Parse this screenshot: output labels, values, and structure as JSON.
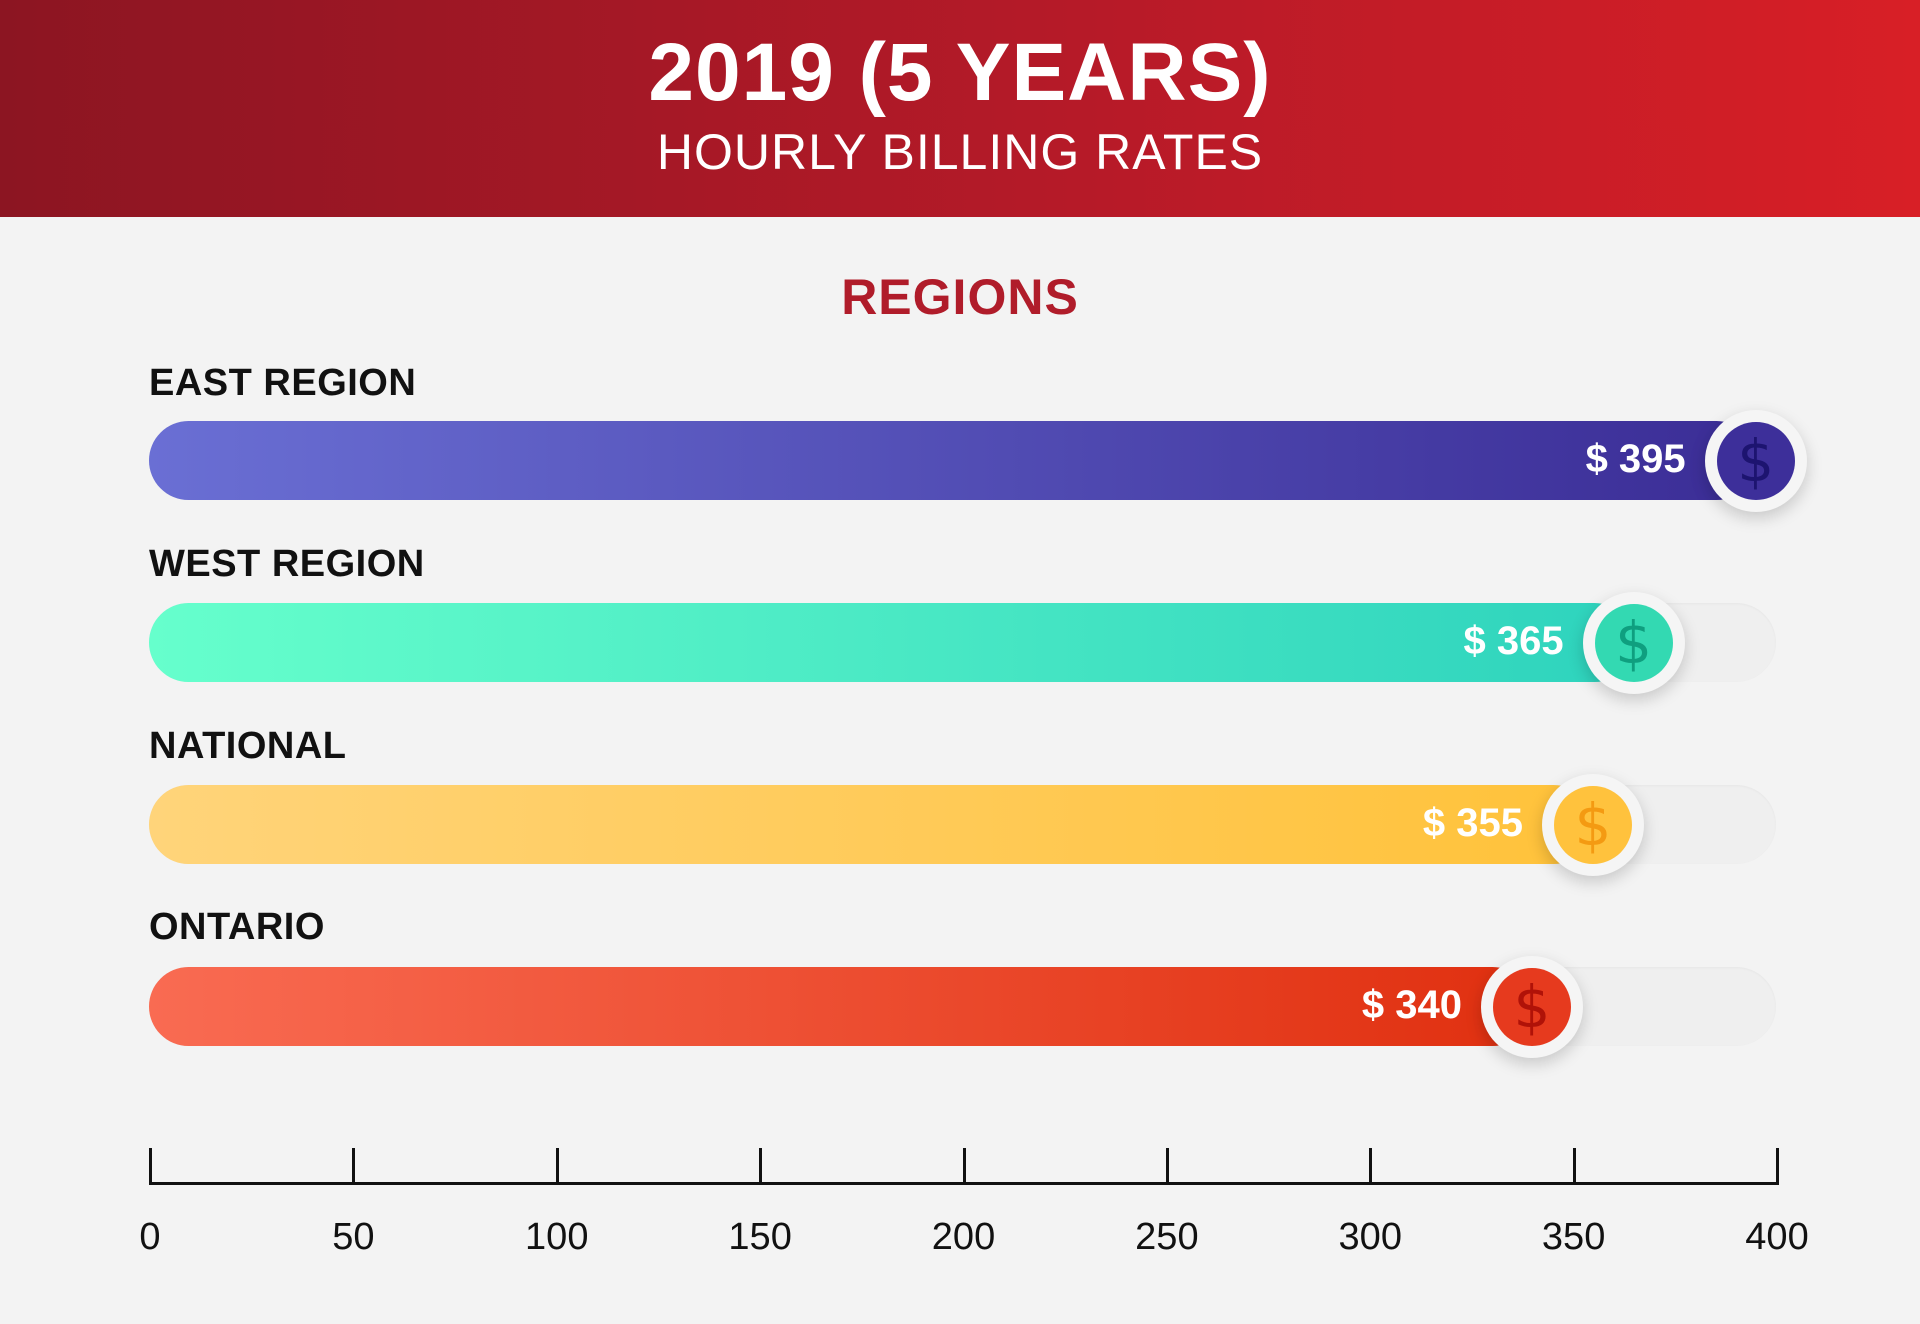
{
  "header": {
    "title": "2019 (5 YEARS)",
    "subtitle": "HOURLY BILLING RATES"
  },
  "section_title": "REGIONS",
  "colors": {
    "header_start": "#8c1522",
    "header_end": "#d81f26",
    "section_title": "#b01c2a"
  },
  "chart_data": {
    "type": "bar",
    "orientation": "horizontal",
    "title": "REGIONS",
    "categories": [
      "EAST REGION",
      "WEST REGION",
      "NATIONAL",
      "ONTARIO"
    ],
    "values": [
      395,
      365,
      355,
      340
    ],
    "value_labels": [
      "$ 395",
      "$ 365",
      "$ 355",
      "$ 340"
    ],
    "xlim": [
      0,
      400
    ],
    "x_ticks": [
      0,
      50,
      100,
      150,
      200,
      250,
      300,
      350,
      400
    ],
    "x_tick_labels": [
      "0",
      "50",
      "100",
      "150",
      "200",
      "250",
      "300",
      "350",
      "400"
    ],
    "icon": "dollar-icon",
    "bar_colors": [
      {
        "start": "#6a6fd4",
        "end": "#3b2d96",
        "knob": "#3d2f9a",
        "glyph": "#1d1470"
      },
      {
        "start": "#66ffcc",
        "end": "#2ed3bd",
        "knob": "#33d9b2",
        "glyph": "#0f9f7f"
      },
      {
        "start": "#ffd47a",
        "end": "#ffc23a",
        "knob": "#ffc23d",
        "glyph": "#f49a12"
      },
      {
        "start": "#f96b52",
        "end": "#e03010",
        "knob": "#e63a1e",
        "glyph": "#b01208"
      }
    ],
    "grid": false,
    "legend": "none"
  }
}
